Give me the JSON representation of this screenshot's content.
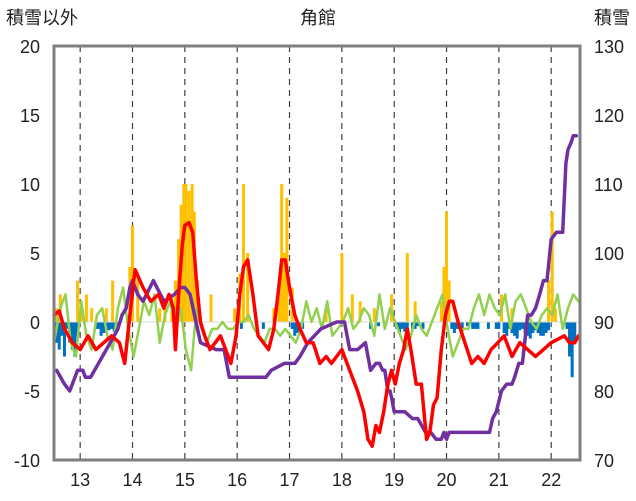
{
  "chart_data": {
    "type": "line",
    "title": "角館",
    "ylabel_left": "積雪以外",
    "ylabel_right": "積雪",
    "xlim": [
      12.5,
      22.55
    ],
    "ylim_left": [
      -10,
      20
    ],
    "ylim_right": [
      70,
      130
    ],
    "x_ticks": [
      13,
      14,
      15,
      16,
      17,
      18,
      19,
      20,
      21,
      22
    ],
    "x_tick_labels": [
      "13",
      "14",
      "15",
      "16",
      "17",
      "18",
      "19",
      "20",
      "21",
      "22"
    ],
    "y_ticks_left": [
      -10,
      -5,
      0,
      5,
      10,
      15,
      20
    ],
    "y_tick_labels_left": [
      "-10",
      "-5",
      "0",
      "5",
      "10",
      "15",
      "20"
    ],
    "y_ticks_right": [
      70,
      80,
      90,
      100,
      110,
      120,
      130
    ],
    "y_tick_labels_right": [
      "70",
      "80",
      "90",
      "100",
      "110",
      "120",
      "130"
    ],
    "grid": "vertical-dashed",
    "colors": {
      "red": "#ff0000",
      "green": "#92d050",
      "purple": "#7030a0",
      "orange_bars": "#ffc000",
      "blue_bars": "#0070c0"
    },
    "series": [
      {
        "key": "red",
        "axis": "left",
        "x": [
          12.5,
          12.6,
          12.7,
          12.85,
          13.0,
          13.15,
          13.3,
          13.45,
          13.6,
          13.75,
          13.85,
          13.95,
          14.05,
          14.2,
          14.35,
          14.5,
          14.6,
          14.7,
          14.78,
          14.82,
          14.88,
          14.95,
          15.0,
          15.08,
          15.15,
          15.22,
          15.3,
          15.38,
          15.48,
          15.58,
          15.68,
          15.78,
          15.88,
          15.98,
          16.05,
          16.12,
          16.2,
          16.3,
          16.4,
          16.5,
          16.6,
          16.7,
          16.78,
          16.85,
          16.92,
          17.0,
          17.1,
          17.2,
          17.32,
          17.45,
          17.58,
          17.7,
          17.8,
          17.9,
          18.0,
          18.1,
          18.2,
          18.3,
          18.42,
          18.5,
          18.58,
          18.65,
          18.72,
          18.8,
          18.88,
          18.95,
          19.02,
          19.1,
          19.18,
          19.25,
          19.32,
          19.42,
          19.52,
          19.58,
          19.62,
          19.68,
          19.75,
          19.82,
          19.9,
          19.98,
          20.05,
          20.12,
          20.22,
          20.35,
          20.48,
          20.6,
          20.72,
          20.85,
          20.98,
          21.1,
          21.25,
          21.4,
          21.55,
          21.7,
          21.85,
          22.0,
          22.15,
          22.25,
          22.35,
          22.45,
          22.52
        ],
        "y": [
          0.5,
          0.8,
          -0.5,
          -1.5,
          -2.0,
          -1.0,
          -2.0,
          -1.5,
          -1.0,
          -1.5,
          -3.0,
          0.5,
          3.8,
          2.5,
          1.5,
          2.0,
          1.0,
          2.0,
          1.0,
          -2.0,
          2.0,
          5.5,
          7.0,
          7.2,
          6.5,
          3.0,
          0.0,
          -1.0,
          -2.0,
          -1.5,
          -1.0,
          -2.0,
          -3.0,
          -1.0,
          2.0,
          4.0,
          4.5,
          2.0,
          -1.0,
          -1.5,
          -2.0,
          -0.5,
          2.0,
          4.5,
          4.5,
          2.5,
          0.5,
          -0.5,
          -1.5,
          -1.5,
          -3.0,
          -2.5,
          -3.0,
          -2.5,
          -2.0,
          -3.0,
          -4.0,
          -5.0,
          -6.5,
          -8.5,
          -9.0,
          -7.5,
          -8.0,
          -6.5,
          -4.5,
          -3.5,
          -4.5,
          -3.0,
          -2.0,
          -0.5,
          -2.0,
          -4.5,
          -4.5,
          -7.0,
          -8.5,
          -8.0,
          -6.0,
          -5.5,
          -2.0,
          0.5,
          1.5,
          1.5,
          0.0,
          -1.5,
          -3.0,
          -2.5,
          -3.0,
          -2.0,
          -1.5,
          -1.0,
          -2.5,
          -1.5,
          -2.0,
          -2.5,
          -2.0,
          -1.5,
          -1.2,
          -1.0,
          -1.5,
          -1.5,
          -1.0
        ]
      },
      {
        "key": "green",
        "axis": "left",
        "x": [
          12.5,
          12.62,
          12.72,
          12.82,
          12.92,
          13.02,
          13.12,
          13.22,
          13.32,
          13.42,
          13.52,
          13.62,
          13.72,
          13.82,
          13.92,
          14.02,
          14.12,
          14.22,
          14.32,
          14.42,
          14.52,
          14.62,
          14.72,
          14.82,
          14.92,
          15.02,
          15.12,
          15.22,
          15.32,
          15.42,
          15.52,
          15.62,
          15.72,
          15.82,
          15.92,
          16.02,
          16.12,
          16.22,
          16.32,
          16.42,
          16.52,
          16.62,
          16.72,
          16.82,
          16.92,
          17.02,
          17.12,
          17.22,
          17.32,
          17.42,
          17.52,
          17.62,
          17.72,
          17.82,
          17.92,
          18.02,
          18.12,
          18.22,
          18.32,
          18.42,
          18.52,
          18.62,
          18.72,
          18.82,
          18.92,
          19.02,
          19.12,
          19.22,
          19.32,
          19.42,
          19.52,
          19.62,
          19.72,
          19.82,
          19.92,
          20.02,
          20.12,
          20.22,
          20.32,
          20.42,
          20.52,
          20.62,
          20.72,
          20.82,
          20.92,
          21.02,
          21.12,
          21.22,
          21.32,
          21.42,
          21.52,
          21.62,
          21.72,
          21.82,
          21.92,
          22.02,
          22.12,
          22.22,
          22.32,
          22.42,
          22.52
        ],
        "y": [
          -1.5,
          1.0,
          2.0,
          -1.5,
          -2.5,
          1.5,
          -1.0,
          -2.0,
          0.5,
          1.0,
          -1.0,
          -2.0,
          1.0,
          2.5,
          -0.5,
          -2.5,
          -0.5,
          1.5,
          0.5,
          2.0,
          -1.5,
          0.5,
          1.5,
          -0.5,
          1.0,
          -2.0,
          -3.5,
          1.0,
          -0.5,
          -1.5,
          -0.5,
          -0.5,
          0.0,
          -0.5,
          -0.5,
          0.0,
          0.0,
          0.5,
          -0.5,
          -1.0,
          -1.5,
          -0.5,
          -0.5,
          -1.0,
          -0.5,
          -1.0,
          -1.5,
          -0.5,
          1.5,
          0.0,
          1.0,
          -0.5,
          1.5,
          -1.0,
          -0.5,
          0.0,
          1.0,
          -0.5,
          0.0,
          1.0,
          0.5,
          -1.0,
          2.0,
          -0.5,
          1.0,
          0.0,
          -1.0,
          -2.0,
          -1.0,
          0.5,
          -0.5,
          -1.0,
          0.0,
          1.0,
          2.0,
          -0.5,
          -2.5,
          -1.5,
          -0.5,
          -0.5,
          1.0,
          2.0,
          0.5,
          2.0,
          1.0,
          0.5,
          2.0,
          -0.5,
          1.5,
          2.0,
          1.0,
          0.0,
          -0.5,
          0.5,
          1.0,
          0.5,
          2.0,
          -0.5,
          1.0,
          2.0,
          1.5
        ]
      },
      {
        "key": "purple",
        "axis": "right",
        "x": [
          12.55,
          12.7,
          12.8,
          12.95,
          13.05,
          13.1,
          13.2,
          13.35,
          13.5,
          13.65,
          13.72,
          13.8,
          13.88,
          13.95,
          14.0,
          14.05,
          14.1,
          14.2,
          14.4,
          14.6,
          14.8,
          14.92,
          15.0,
          15.1,
          15.3,
          15.6,
          15.75,
          15.85,
          16.05,
          16.3,
          16.55,
          16.65,
          16.9,
          17.1,
          17.2,
          17.35,
          17.6,
          17.9,
          18.05,
          18.15,
          18.3,
          18.45,
          18.55,
          18.65,
          18.72,
          18.78,
          18.82,
          18.88,
          18.92,
          18.95,
          19.0,
          19.08,
          19.2,
          19.35,
          19.45,
          19.6,
          19.7,
          19.8,
          19.9,
          19.95,
          20.0,
          20.05,
          20.2,
          20.35,
          20.5,
          20.65,
          20.75,
          20.82,
          20.88,
          20.95,
          21.05,
          21.15,
          21.25,
          21.3,
          21.38,
          21.45,
          21.55,
          21.62,
          21.7,
          21.78,
          21.85,
          21.92,
          22.0,
          22.1,
          22.22,
          22.28,
          22.32,
          22.38,
          22.42,
          22.48
        ],
        "y": [
          83,
          81,
          80,
          83,
          83,
          82,
          82,
          84,
          86,
          88,
          89,
          91,
          92,
          95,
          96,
          95,
          94,
          93,
          96,
          93,
          94,
          95,
          95,
          94,
          87,
          86,
          86,
          82,
          82,
          82,
          82,
          83,
          84,
          84,
          85,
          87,
          89,
          90,
          90,
          86,
          86,
          87,
          83,
          84,
          84,
          83,
          83,
          80,
          80,
          79,
          77,
          77,
          77,
          76,
          76,
          74,
          74,
          73,
          73,
          74,
          73,
          74,
          74,
          74,
          74,
          74,
          74,
          74,
          76,
          77,
          80,
          81,
          81,
          82,
          84,
          84,
          91,
          91,
          92,
          94,
          96,
          96,
          102,
          103,
          103,
          113,
          115,
          116,
          117,
          117
        ]
      }
    ],
    "bars_orange": {
      "axis": "left",
      "x": [
        12.55,
        12.62,
        12.95,
        13.02,
        13.12,
        13.22,
        13.5,
        13.62,
        13.95,
        14.0,
        14.1,
        14.52,
        14.62,
        14.75,
        14.82,
        14.88,
        14.93,
        14.98,
        15.02,
        15.08,
        15.14,
        15.18,
        15.24,
        15.5,
        15.95,
        16.05,
        16.12,
        16.2,
        16.7,
        16.8,
        16.85,
        16.9,
        16.95,
        17.05,
        17.7,
        18.0,
        18.2,
        18.35,
        18.62,
        18.95,
        19.25,
        19.4,
        19.9,
        19.95,
        20.0,
        20.05,
        21.05,
        21.25,
        21.95,
        22.02,
        22.08
      ],
      "values": [
        1.0,
        2.0,
        3.0,
        1.0,
        2.0,
        1.0,
        1.0,
        3.0,
        4.0,
        7.0,
        3.5,
        1.0,
        1.0,
        2.0,
        3.0,
        6.0,
        8.5,
        10.0,
        10.0,
        9.5,
        10.0,
        8.0,
        3.0,
        2.0,
        1.0,
        3.5,
        10.0,
        5.0,
        1.0,
        3.0,
        10.0,
        5.0,
        9.0,
        2.5,
        1.0,
        5.0,
        2.0,
        1.5,
        1.0,
        2.0,
        5.0,
        1.5,
        1.5,
        4.0,
        8.0,
        3.0,
        2.0,
        1.0,
        3.0,
        8.0,
        1.0
      ]
    },
    "bars_blue": {
      "axis": "left",
      "x": [
        12.5,
        12.55,
        12.6,
        12.65,
        12.7,
        12.75,
        12.8,
        12.85,
        12.9,
        12.95,
        13.3,
        13.35,
        13.4,
        13.45,
        13.5,
        13.55,
        13.6,
        13.65,
        13.72,
        16.08,
        16.5,
        17.05,
        17.1,
        17.15,
        17.2,
        17.25,
        18.55,
        18.7,
        19.05,
        19.1,
        19.15,
        19.2,
        19.25,
        19.35,
        19.4,
        19.45,
        19.55,
        20.1,
        20.15,
        20.2,
        20.3,
        20.4,
        20.5,
        20.55,
        20.6,
        20.8,
        20.95,
        21.0,
        21.1,
        21.15,
        21.2,
        21.25,
        21.3,
        21.35,
        21.4,
        21.45,
        21.5,
        21.55,
        21.6,
        21.65,
        21.7,
        21.75,
        21.8,
        21.85,
        21.9,
        21.95,
        22.3,
        22.35,
        22.4,
        22.45
      ],
      "values": [
        -0.5,
        -1.5,
        -2.0,
        -1.0,
        -2.5,
        -0.5,
        -1.5,
        -2.0,
        -2.5,
        -1.0,
        -0.5,
        -0.5,
        -1.0,
        -0.8,
        -0.5,
        -0.6,
        -0.5,
        -0.7,
        -0.5,
        -0.5,
        -0.5,
        -0.5,
        -1.0,
        -0.8,
        -0.5,
        -0.5,
        -0.5,
        -0.3,
        -0.5,
        -0.8,
        -0.5,
        -0.7,
        -0.5,
        -0.5,
        -0.5,
        -0.3,
        -0.5,
        -0.5,
        -0.8,
        -0.5,
        -0.5,
        -0.3,
        -0.5,
        -0.5,
        -0.5,
        -0.5,
        -0.5,
        -0.5,
        -0.8,
        -1.0,
        -0.5,
        -0.8,
        -1.0,
        -1.2,
        -0.6,
        -0.5,
        -0.8,
        -1.0,
        -1.2,
        -0.8,
        -0.6,
        -0.8,
        -1.0,
        -1.0,
        -0.8,
        -0.6,
        -0.5,
        -2.5,
        -4.0,
        -1.5
      ]
    }
  }
}
